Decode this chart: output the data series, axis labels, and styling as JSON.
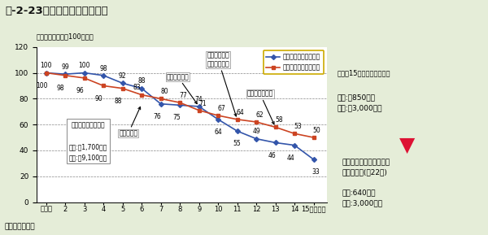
{
  "title": "序-2-23図　最終処分量の推移",
  "subtitle": "平成元年度の値を100とする",
  "xlabel_note": "（資料）環境省",
  "x_labels": [
    "平成元",
    "2",
    "3",
    "4",
    "5",
    "6",
    "7",
    "8",
    "9",
    "10",
    "11",
    "12",
    "13",
    "14",
    "15（年度）"
  ],
  "x_values": [
    1,
    2,
    3,
    4,
    5,
    6,
    7,
    8,
    9,
    10,
    11,
    12,
    13,
    14,
    15
  ],
  "industrial_values": [
    100,
    99,
    100,
    98,
    92,
    88,
    76,
    75,
    74,
    64,
    55,
    49,
    46,
    44,
    33
  ],
  "general_values": [
    100,
    98,
    96,
    90,
    88,
    83,
    80,
    77,
    71,
    67,
    64,
    62,
    58,
    53,
    50
  ],
  "industrial_color": "#3355aa",
  "general_color": "#cc4422",
  "bg_color": "#e5edd8",
  "plot_bg": "#ffffff",
  "ylim": [
    0,
    120
  ],
  "yticks": [
    0,
    20,
    40,
    60,
    80,
    100,
    120
  ],
  "grid_color": "#888888",
  "legend_industrial": "産業廃棄物最終処分量",
  "legend_general": "一般廃棄物最終処分量",
  "ann_recycling": "容り法制定",
  "ann_appliance": "家電り法制定",
  "ann_food": "食品り法制定\n建設り法制定",
  "ann_auto": "自動車り法制定",
  "left_box_title": "平成元年最終処分量",
  "left_box_line1": "一廃:瘄1,700万と",
  "left_box_line2": "産廃:瘄9,100万と",
  "right_box1_title": "「平成15年度最終処分量」",
  "right_box1_line1": "一廃:的850万と",
  "right_box1_line2": "産廃:祃3,000万と",
  "right_box2_title": "廃棄物処理法基本方針に\nおける目標(幇22年)",
  "right_box2_line1": "一廃:640万と",
  "right_box2_line2": "産廃:3,000万と"
}
